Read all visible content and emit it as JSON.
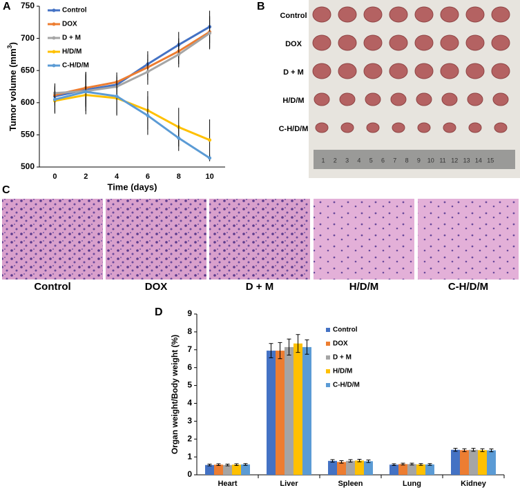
{
  "panel_labels": [
    "A",
    "B",
    "C",
    "D"
  ],
  "photo_b": {
    "row_labels": [
      "Control",
      "DOX",
      "D + M",
      "H/D/M",
      "C-H/D/M"
    ],
    "ruler_labels": [
      "1",
      "2",
      "3",
      "4",
      "5",
      "6",
      "7",
      "8",
      "9",
      "10",
      "11",
      "12",
      "13",
      "14",
      "15"
    ]
  },
  "histology": {
    "labels": [
      "Control",
      "DOX",
      "D + M",
      "H/D/M",
      "C-H/D/M"
    ]
  },
  "chart_data": [
    {
      "type": "line",
      "x_label": "Time (days)",
      "y_label": {
        "text": "Tumor volume (mm",
        "sup": "3",
        "end": ")"
      },
      "categories": [
        "0",
        "2",
        "4",
        "6",
        "8",
        "10"
      ],
      "ylim": [
        500,
        750
      ],
      "yticks": [
        500,
        550,
        600,
        650,
        700,
        750
      ],
      "series": [
        {
          "name": "Control",
          "color": "#4472c4",
          "values": [
            610,
            620,
            628,
            660,
            690,
            718
          ],
          "errors": [
            15,
            25,
            15,
            20,
            20,
            25
          ]
        },
        {
          "name": "DOX",
          "color": "#ed7d31",
          "values": [
            612,
            623,
            632,
            655,
            680,
            710
          ],
          "errors": [
            15,
            25,
            15,
            20,
            20,
            25
          ]
        },
        {
          "name": "D + M",
          "color": "#a5a5a5",
          "values": [
            615,
            618,
            625,
            648,
            675,
            708
          ],
          "errors": [
            15,
            25,
            15,
            20,
            20,
            25
          ]
        },
        {
          "name": "H/D/M",
          "color": "#ffc000",
          "values": [
            603,
            612,
            607,
            588,
            562,
            542
          ],
          "errors": [
            20,
            30,
            25,
            30,
            30,
            32
          ]
        },
        {
          "name": "C-H/D/M",
          "color": "#5b9bd5",
          "values": [
            605,
            617,
            610,
            580,
            545,
            514
          ],
          "errors": [
            20,
            30,
            30,
            30,
            20,
            5
          ]
        }
      ]
    },
    {
      "type": "bar",
      "y_label": "Organ weight/Body weight (%)",
      "categories": [
        "Heart",
        "Liver",
        "Spleen",
        "Lung",
        "Kidney"
      ],
      "ylim": [
        0,
        9
      ],
      "yticks": [
        0,
        1,
        2,
        3,
        4,
        5,
        6,
        7,
        8,
        9
      ],
      "series": [
        {
          "name": "Control",
          "color": "#4472c4",
          "values": [
            0.55,
            6.95,
            0.78,
            0.57,
            1.4
          ],
          "errors": [
            0.05,
            0.4,
            0.07,
            0.05,
            0.08
          ]
        },
        {
          "name": "DOX",
          "color": "#ed7d31",
          "values": [
            0.57,
            6.95,
            0.72,
            0.6,
            1.38
          ],
          "errors": [
            0.05,
            0.45,
            0.07,
            0.05,
            0.08
          ]
        },
        {
          "name": "D + M",
          "color": "#a5a5a5",
          "values": [
            0.55,
            7.15,
            0.78,
            0.6,
            1.4
          ],
          "errors": [
            0.05,
            0.45,
            0.07,
            0.05,
            0.08
          ]
        },
        {
          "name": "H/D/M",
          "color": "#ffc000",
          "values": [
            0.57,
            7.35,
            0.8,
            0.58,
            1.38
          ],
          "errors": [
            0.05,
            0.5,
            0.07,
            0.05,
            0.08
          ]
        },
        {
          "name": "C-H/D/M",
          "color": "#5b9bd5",
          "values": [
            0.58,
            7.15,
            0.76,
            0.58,
            1.37
          ],
          "errors": [
            0.05,
            0.4,
            0.07,
            0.05,
            0.08
          ]
        }
      ]
    }
  ]
}
